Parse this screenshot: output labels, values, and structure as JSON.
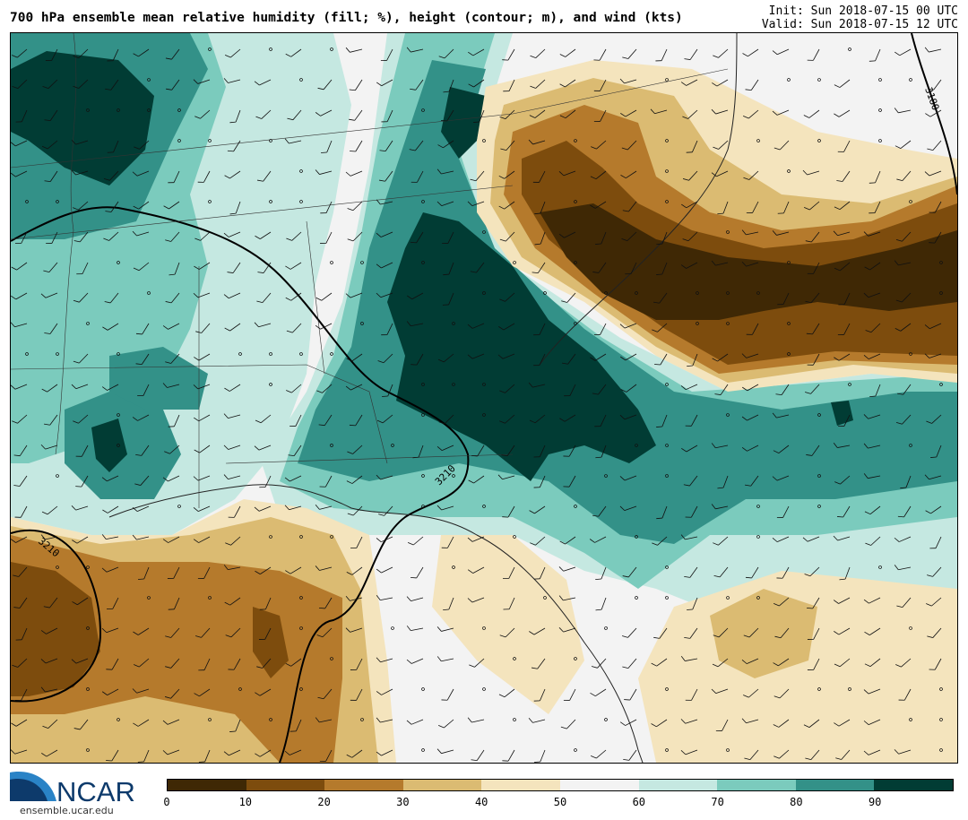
{
  "header": {
    "title": "700 hPa ensemble mean relative humidity (fill; %), height (contour; m), and wind (kts)",
    "init": "Init: Sun 2018-07-15 00 UTC",
    "valid": "Valid: Sun 2018-07-15 12 UTC"
  },
  "map": {
    "contours": [
      "3180",
      "3210",
      "3210"
    ],
    "palette": [
      "#3f2805",
      "#7d4c0d",
      "#b57a2c",
      "#dbbb72",
      "#f4e4bd",
      "#f3f3f3",
      "#c5e8e1",
      "#7bcbbd",
      "#339188",
      "#013c34"
    ]
  },
  "logo": {
    "text": "NCAR",
    "url": "ensemble.ucar.edu",
    "color": "#0d3a6b",
    "swoosh": "#2a83c6"
  },
  "colorbar": {
    "ticks": [
      "0",
      "10",
      "20",
      "30",
      "40",
      "50",
      "60",
      "70",
      "80",
      "90"
    ],
    "colors": [
      "#3f2805",
      "#7d4c0d",
      "#b57a2c",
      "#dbbb72",
      "#f4e4bd",
      "#f3f3f3",
      "#c5e8e1",
      "#7bcbbd",
      "#339188",
      "#013c34"
    ]
  }
}
